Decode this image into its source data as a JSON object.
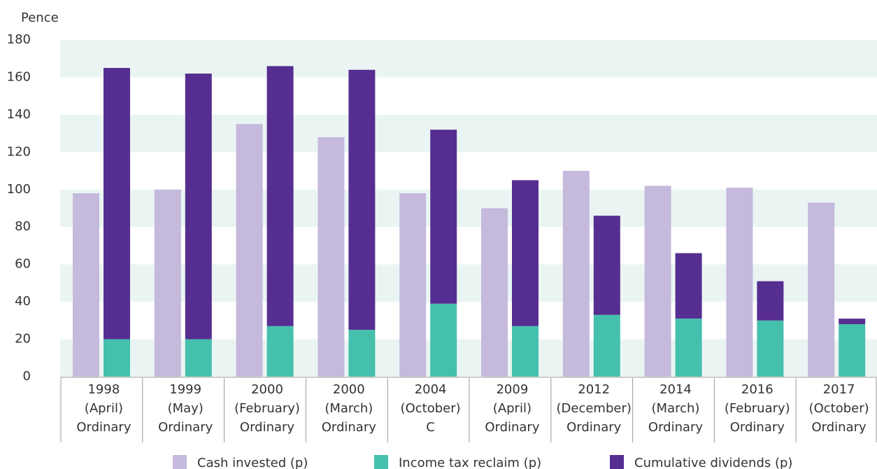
{
  "chart_data": {
    "type": "bar",
    "y_axis_label": "Pence",
    "categories": [
      [
        "1998",
        "(April)",
        "Ordinary"
      ],
      [
        "1999",
        "(May)",
        "Ordinary"
      ],
      [
        "2000",
        "(February)",
        "Ordinary"
      ],
      [
        "2000",
        "(March)",
        "Ordinary"
      ],
      [
        "2004",
        "(October)",
        "C"
      ],
      [
        "2009",
        "(April)",
        "Ordinary"
      ],
      [
        "2012",
        "(December)",
        "Ordinary"
      ],
      [
        "2014",
        "(March)",
        "Ordinary"
      ],
      [
        "2016",
        "(February)",
        "Ordinary"
      ],
      [
        "2017",
        "(October)",
        "Ordinary"
      ]
    ],
    "series": [
      {
        "name": "Cash invested (p)",
        "color": "#c5b9dc",
        "values": [
          98,
          100,
          135,
          128,
          98,
          90,
          110,
          102,
          101,
          93
        ]
      },
      {
        "name": "Income tax reclaim (p)",
        "color": "#45c0ad",
        "values": [
          20,
          20,
          27,
          25,
          39,
          27,
          33,
          31,
          30,
          28
        ],
        "stack": "b"
      },
      {
        "name": "Cumulative dividends (p)",
        "color": "#562e91",
        "values": [
          145,
          142,
          139,
          139,
          93,
          78,
          53,
          35,
          21,
          3
        ],
        "stack": "b"
      }
    ],
    "ylim": [
      0,
      180
    ],
    "yticks": [
      0,
      20,
      40,
      60,
      80,
      100,
      120,
      140,
      160,
      180
    ],
    "grid": "bands",
    "band_color": "#eaf5f3",
    "legend": "bottom"
  }
}
